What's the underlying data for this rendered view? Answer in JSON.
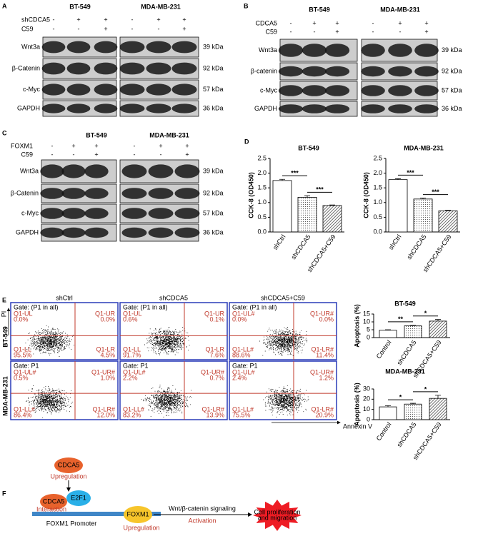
{
  "panels": {
    "A": {
      "letter": "A",
      "cells": [
        "BT-549",
        "MDA-MB-231"
      ],
      "treatments": [
        {
          "name": "shCDCA5",
          "signs": [
            "-",
            "+",
            "+",
            "-",
            "+",
            "+"
          ]
        },
        {
          "name": "C59",
          "signs": [
            "-",
            "-",
            "+",
            "-",
            "-",
            "+"
          ]
        }
      ],
      "proteins": [
        "Wnt3a",
        "β-Catenin",
        "c-Myc",
        "GAPDH"
      ],
      "sizes": [
        "39 kDa",
        "92 kDa",
        "57 kDa",
        "36 kDa"
      ]
    },
    "B": {
      "letter": "B",
      "cells": [
        "BT-549",
        "MDA-MB-231"
      ],
      "treatments": [
        {
          "name": "CDCA5",
          "signs": [
            "-",
            "+",
            "+",
            "-",
            "+",
            "+"
          ]
        },
        {
          "name": "C59",
          "signs": [
            "-",
            "-",
            "+",
            "-",
            "-",
            "+"
          ]
        }
      ],
      "proteins": [
        "Wnt3a",
        "β-catenin",
        "c-Myc",
        "GAPDH"
      ],
      "sizes": [
        "39 kDa",
        "92 kDa",
        "57 kDa",
        "36 kDa"
      ]
    },
    "C": {
      "letter": "C",
      "cells": [
        "BT-549",
        "MDA-MB-231"
      ],
      "treatments": [
        {
          "name": "FOXM1",
          "signs": [
            "-",
            "+",
            "+",
            "-",
            "+",
            "+"
          ]
        },
        {
          "name": "C59",
          "signs": [
            "-",
            "-",
            "+",
            "-",
            "-",
            "+"
          ]
        }
      ],
      "proteins": [
        "Wnt3a",
        "β-Catenin",
        "c-Myc",
        "GAPDH"
      ],
      "sizes": [
        "39 kDa",
        "92 kDa",
        "57 kDa",
        "36 kDa"
      ]
    },
    "D": {
      "letter": "D"
    },
    "E": {
      "letter": "E",
      "columns": [
        "shCtrl",
        "shCDCA5",
        "shCDCA5+C59"
      ],
      "rows": [
        "BT-549",
        "MDA-MB-231"
      ],
      "gates": [
        "Gate: (P1 in all)",
        "Gate: P1"
      ],
      "y_label": "PI",
      "x_label": "Annexin V",
      "plots": [
        [
          [
            [
              "Q1-UL",
              "0.0%"
            ],
            [
              "Q1-UR",
              "0.0%"
            ],
            [
              "Q1-LL",
              "95.5%"
            ],
            [
              "Q1-LR",
              "4.5%"
            ]
          ],
          [
            [
              "Q1-UL",
              "0.6%"
            ],
            [
              "Q1-UR",
              "0.1%"
            ],
            [
              "Q1-LL",
              "91.7%"
            ],
            [
              "Q1-LR",
              "7.6%"
            ]
          ],
          [
            [
              "Q1-UL#",
              "0.0%"
            ],
            [
              "Q1-UR#",
              "0.0%"
            ],
            [
              "Q1-LL#",
              "88.6%"
            ],
            [
              "Q1-LR#",
              "11.4%"
            ]
          ]
        ],
        [
          [
            [
              "Q1-UL#",
              "0.5%"
            ],
            [
              "Q1-UR#",
              "1.0%"
            ],
            [
              "Q1-LL#",
              "86.4%"
            ],
            [
              "Q1-LR#",
              "12.0%"
            ]
          ],
          [
            [
              "Q1-UL#",
              "2.2%"
            ],
            [
              "Q1-UR#",
              "0.7%"
            ],
            [
              "Q1-LL#",
              "83.2%"
            ],
            [
              "Q1-LR#",
              "13.9%"
            ]
          ],
          [
            [
              "Q1-UL#",
              "2.4%"
            ],
            [
              "Q1-UR#",
              "1.2%"
            ],
            [
              "Q1-LL#",
              "75.5%"
            ],
            [
              "Q1-LR#",
              "20.9%"
            ]
          ]
        ]
      ]
    }
  },
  "chart_data": [
    {
      "type": "bar",
      "title": "BT-549",
      "y_label": "CCK-8 (OD450)",
      "categories": [
        "shCtrl",
        "shCDCA5",
        "shCDCA5+C59"
      ],
      "values": [
        1.75,
        1.18,
        0.9
      ],
      "errors": [
        0.04,
        0.05,
        0.02
      ],
      "fills": [
        "white",
        "dots",
        "hatch"
      ],
      "significance": [
        "***",
        "***"
      ],
      "ylim": [
        0,
        2.5
      ],
      "yticks": [
        {
          "value": 0,
          "label": "0.0"
        },
        0.5,
        {
          "value": 1,
          "label": "1.0"
        },
        1.5,
        {
          "value": 2,
          "label": "2.0"
        },
        2.5
      ]
    },
    {
      "type": "bar",
      "title": "MDA-MB-231",
      "y_label": "CCK-8 (OD450)",
      "categories": [
        "shCtrl",
        "shCDCA5",
        "shCDCA5+C59"
      ],
      "values": [
        1.78,
        1.12,
        0.72
      ],
      "errors": [
        0.03,
        0.03,
        0.02
      ],
      "fills": [
        "white",
        "dots",
        "hatch"
      ],
      "significance": [
        "***",
        "***"
      ],
      "ylim": [
        0,
        2.5
      ],
      "yticks": [
        {
          "value": 0,
          "label": "0.0"
        },
        0.5,
        {
          "value": 1,
          "label": "1.0"
        },
        1.5,
        {
          "value": 2,
          "label": "2.0"
        },
        2.5
      ]
    },
    {
      "type": "bar",
      "title": "BT-549",
      "y_label": "Apoptosis (%)",
      "categories": [
        "Control",
        "shCDCA5",
        "shCDCA5+C59"
      ],
      "values": [
        4.7,
        7.5,
        10.5
      ],
      "errors": [
        0.3,
        0.3,
        1.0
      ],
      "fills": [
        "white",
        "dots",
        "hatch"
      ],
      "significance": [
        "**",
        "*"
      ],
      "ylim": [
        0,
        15
      ],
      "yticks": [
        0,
        5,
        10,
        15
      ]
    },
    {
      "type": "bar",
      "title": "MDA-MB-231",
      "y_label": "Apoptosis (%)",
      "categories": [
        "Control",
        "shCDCA5",
        "shCDCA5+C59"
      ],
      "values": [
        12.5,
        15.2,
        20.8
      ],
      "errors": [
        1.2,
        0.8,
        3.0
      ],
      "fills": [
        "white",
        "dots",
        "hatch"
      ],
      "significance": [
        "*",
        "*"
      ],
      "ylim": [
        0,
        30
      ],
      "yticks": [
        0,
        10,
        20,
        30
      ]
    }
  ],
  "diagram": {
    "letter": "F",
    "source": "CDCA5",
    "source_effect": "Upregulation",
    "complex": [
      "CDCA5",
      "E2F1"
    ],
    "complex_effect": "Interaction",
    "promoter": "FOXM1 Promoter",
    "target": "FOXM1",
    "target_effect": "Upregulation",
    "pathway": "Wnt/β-catenin signaling",
    "pathway_effect": "Activation",
    "outcome": [
      "Cell proliferation",
      "and migration"
    ]
  }
}
